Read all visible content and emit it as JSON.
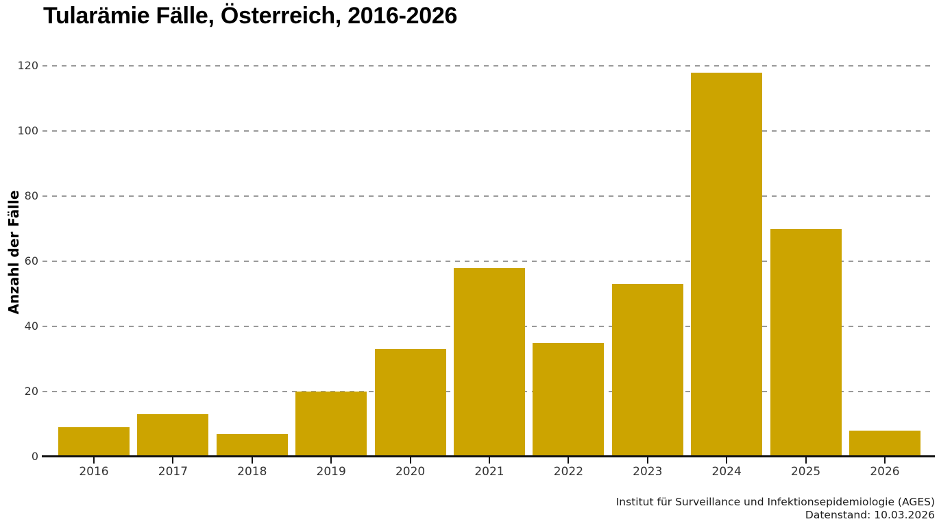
{
  "title": "Tularämie Fälle, Österreich, 2016-2026",
  "chart_data": {
    "type": "bar",
    "categories": [
      "2016",
      "2017",
      "2018",
      "2019",
      "2020",
      "2021",
      "2022",
      "2023",
      "2024",
      "2025",
      "2026"
    ],
    "values": [
      9,
      13,
      7,
      20,
      33,
      58,
      35,
      53,
      118,
      70,
      8
    ],
    "title": "Tularämie Fälle, Österreich, 2016-2026",
    "xlabel": "",
    "ylabel": "Anzahl der Fälle",
    "ylim": [
      0,
      120
    ],
    "ytick_step": 20,
    "yticks": [
      0,
      20,
      40,
      60,
      80,
      100,
      120
    ],
    "grid": "horizontal dashed, behind bars",
    "legend": "none"
  },
  "footer": {
    "source": "Institut für Surveillance und Infektionsepidemiologie (AGES)",
    "datenstand": "Datenstand: 10.03.2026"
  },
  "colors": {
    "bar": "#CCA400",
    "grid": "#999999",
    "axis": "#111111",
    "tick_text": "#333333",
    "title_text": "#000000"
  }
}
